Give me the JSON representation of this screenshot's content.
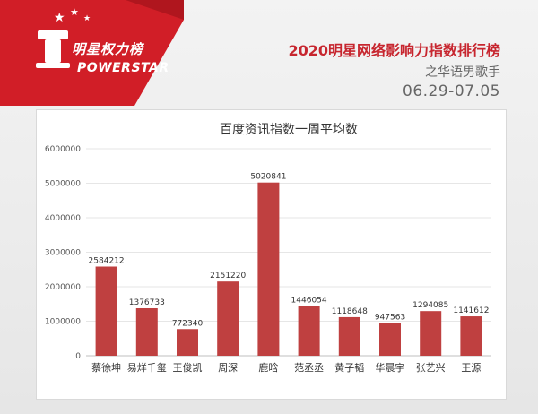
{
  "brand": {
    "name_cn": "明星权力榜",
    "name_en": "POWERSTAR"
  },
  "header": {
    "title": "2020明星网络影响力指数排行榜",
    "subtitle": "之华语男歌手",
    "date_range": "06.29-07.05"
  },
  "colors": {
    "bar": "#bf4040",
    "accent": "#c7262f",
    "logo_red": "#d11e27"
  },
  "chart_data": {
    "type": "bar",
    "title": "百度资讯指数一周平均数",
    "xlabel": "",
    "ylabel": "",
    "categories": [
      "蔡徐坤",
      "易烊千玺",
      "王俊凯",
      "周深",
      "鹿晗",
      "范丞丞",
      "黄子韬",
      "华晨宇",
      "张艺兴",
      "王源"
    ],
    "values": [
      2584212,
      1376733,
      772340,
      2151220,
      5020841,
      1446054,
      1118648,
      947563,
      1294085,
      1141612
    ],
    "ylim": [
      0,
      6000000
    ],
    "yticks": [
      "0",
      "1000000",
      "2000000",
      "3000000",
      "4000000",
      "5000000",
      "6000000"
    ],
    "grid": true,
    "legend": "none"
  }
}
